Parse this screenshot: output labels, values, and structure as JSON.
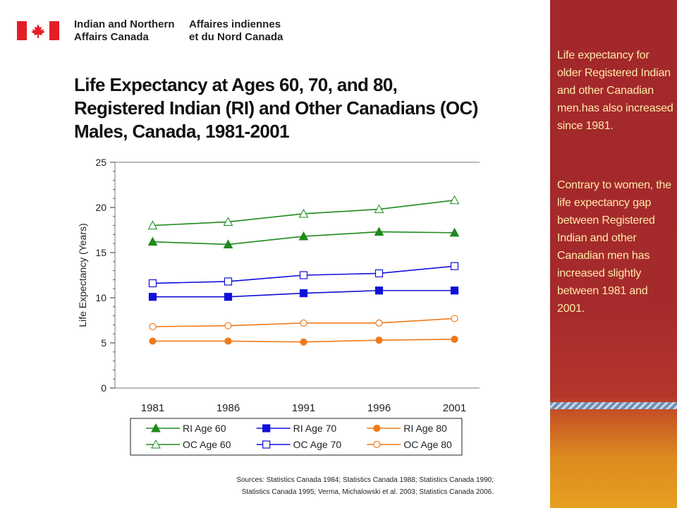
{
  "header": {
    "dept_en": "Indian and Northern\nAffairs Canada",
    "dept_fr": "Affaires indiennes\net du Nord Canada"
  },
  "slide": {
    "title": "Life Expectancy at Ages 60, 70, and 80,\nRegistered Indian (RI) and Other Canadians (OC)\nMales, Canada, 1981-2001",
    "sources": "Sources:  Statistics  Canada 1984; Statistics  Canada 1988; Statistics  Canada 1990;\nStatistics  Canada 1995; Verma, Michalowski  et al. 2003; Statistics  Canada 2006."
  },
  "sidebar": {
    "paragraph1": "Life expectancy for older Registered Indian and other Canadian men.has also increased since 1981.",
    "paragraph2": "Contrary to women, the life expectancy gap between Registered Indian and other Canadian men has increased slightly between 1981 and 2001."
  },
  "colors": {
    "green": "#1e8a1e",
    "blue": "#1010d8",
    "orange": "#f07a1a",
    "sidebar_red": "#a52a2c",
    "sidebar_text": "#ffe9a8"
  },
  "chart_data": {
    "type": "line",
    "title": "Life Expectancy at Ages 60, 70, and 80, Registered Indian (RI) and Other Canadians (OC) Males, Canada, 1981-2001",
    "xlabel": "",
    "ylabel": "Life Expectancy (Years)",
    "x": [
      "1981",
      "1986",
      "1991",
      "1996",
      "2001"
    ],
    "ylim": [
      0,
      25
    ],
    "yticks": [
      0,
      5,
      10,
      15,
      20,
      25
    ],
    "grid": false,
    "legend": "bottom",
    "series": [
      {
        "name": "RI Age 60",
        "values": [
          16.2,
          15.9,
          16.8,
          17.3,
          17.2
        ],
        "color": "#1e8a1e",
        "marker": "triangle",
        "filled": true
      },
      {
        "name": "RI Age 70",
        "values": [
          10.1,
          10.1,
          10.5,
          10.8,
          10.8
        ],
        "color": "#1010d8",
        "marker": "square",
        "filled": true
      },
      {
        "name": "RI Age 80",
        "values": [
          5.2,
          5.2,
          5.1,
          5.3,
          5.4
        ],
        "color": "#f07a1a",
        "marker": "circle",
        "filled": true
      },
      {
        "name": "OC Age 60",
        "values": [
          18.0,
          18.4,
          19.3,
          19.8,
          20.8
        ],
        "color": "#1e8a1e",
        "marker": "triangle",
        "filled": false
      },
      {
        "name": "OC Age 70",
        "values": [
          11.6,
          11.8,
          12.5,
          12.7,
          13.5
        ],
        "color": "#1010d8",
        "marker": "square",
        "filled": false
      },
      {
        "name": "OC Age 80",
        "values": [
          6.8,
          6.9,
          7.2,
          7.2,
          7.7
        ],
        "color": "#f07a1a",
        "marker": "circle",
        "filled": false
      }
    ]
  }
}
